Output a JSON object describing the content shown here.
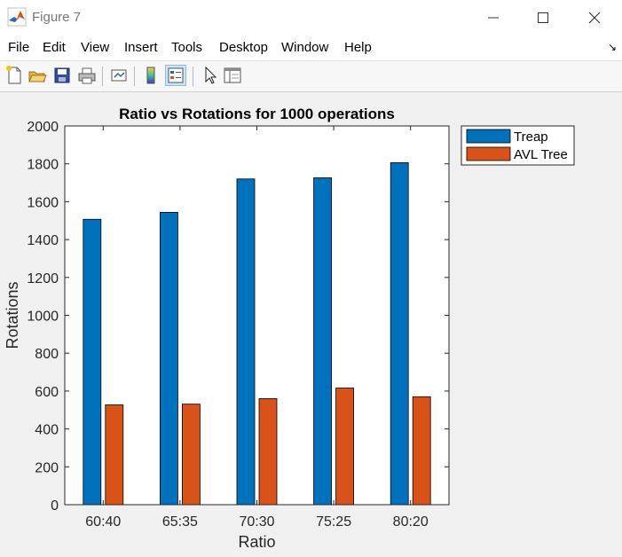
{
  "window": {
    "title": "Figure 7"
  },
  "menu": [
    "File",
    "Edit",
    "View",
    "Insert",
    "Tools",
    "Desktop",
    "Window",
    "Help"
  ],
  "toolbar_icons": [
    "new-figure-icon",
    "open-file-icon",
    "save-icon",
    "print-icon",
    "link-plot-icon",
    "insert-colorbar-icon",
    "insert-legend-icon",
    "edit-plot-pointer-icon",
    "property-inspector-icon"
  ],
  "colors": {
    "treap": "#0072BD",
    "avl": "#D95319"
  },
  "chart_data": {
    "type": "bar",
    "title": "Ratio vs Rotations for 1000 operations",
    "xlabel": "Ratio",
    "ylabel": "Rotations",
    "categories": [
      "60:40",
      "65:35",
      "70:30",
      "75:25",
      "80:20"
    ],
    "ylim": [
      0,
      2000
    ],
    "yticks": [
      0,
      200,
      400,
      600,
      800,
      1000,
      1200,
      1400,
      1600,
      1800,
      2000
    ],
    "grid": false,
    "legend_position": "outside-top-right",
    "series": [
      {
        "name": "Treap",
        "values": [
          1507,
          1544,
          1720,
          1726,
          1806
        ]
      },
      {
        "name": "AVL Tree",
        "values": [
          527,
          531,
          560,
          616,
          570
        ]
      }
    ]
  }
}
